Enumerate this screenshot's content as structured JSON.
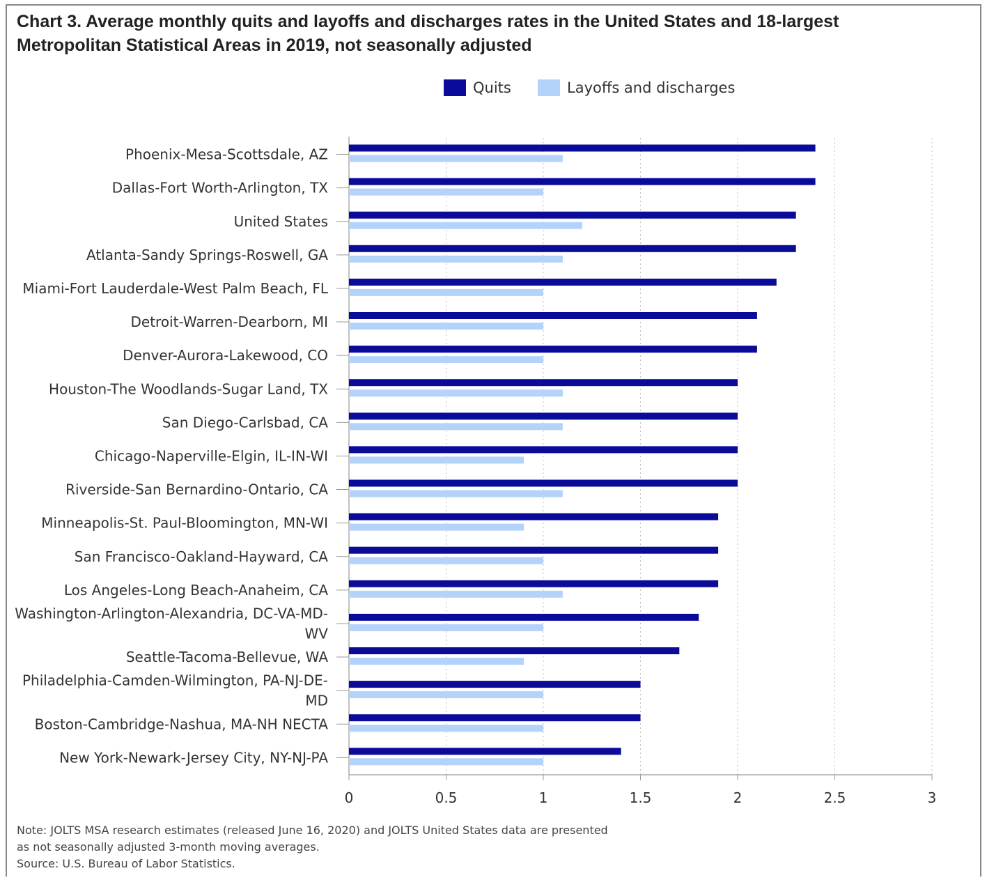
{
  "chart_data": {
    "type": "bar",
    "orientation": "horizontal",
    "title": "Chart 3. Average monthly quits and layoffs and discharges rates in the United States and 18-largest Metropolitan Statistical Areas in 2019, not seasonally adjusted",
    "categories": [
      "Phoenix-Mesa-Scottsdale, AZ",
      "Dallas-Fort Worth-Arlington, TX",
      "United States",
      "Atlanta-Sandy Springs-Roswell, GA",
      "Miami-Fort Lauderdale-West Palm Beach, FL",
      "Detroit-Warren-Dearborn, MI",
      "Denver-Aurora-Lakewood, CO",
      "Houston-The Woodlands-Sugar Land, TX",
      "San Diego-Carlsbad, CA",
      "Chicago-Naperville-Elgin, IL-IN-WI",
      "Riverside-San Bernardino-Ontario, CA",
      "Minneapolis-St. Paul-Bloomington, MN-WI",
      "San Francisco-Oakland-Hayward, CA",
      "Los Angeles-Long Beach-Anaheim, CA",
      "Washington-Arlington-Alexandria, DC-VA-MD-WV",
      "Seattle-Tacoma-Bellevue, WA",
      "Philadelphia-Camden-Wilmington, PA-NJ-DE-MD",
      "Boston-Cambridge-Nashua, MA-NH NECTA",
      "New York-Newark-Jersey City, NY-NJ-PA"
    ],
    "category_label_lines": [
      [
        "Phoenix-Mesa-Scottsdale, AZ"
      ],
      [
        "Dallas-Fort Worth-Arlington, TX"
      ],
      [
        "United States"
      ],
      [
        "Atlanta-Sandy Springs-Roswell, GA"
      ],
      [
        "Miami-Fort Lauderdale-West Palm Beach, FL"
      ],
      [
        "Detroit-Warren-Dearborn, MI"
      ],
      [
        "Denver-Aurora-Lakewood, CO"
      ],
      [
        "Houston-The Woodlands-Sugar Land, TX"
      ],
      [
        "San Diego-Carlsbad, CA"
      ],
      [
        "Chicago-Naperville-Elgin, IL-IN-WI"
      ],
      [
        "Riverside-San Bernardino-Ontario, CA"
      ],
      [
        "Minneapolis-St. Paul-Bloomington, MN-WI"
      ],
      [
        "San Francisco-Oakland-Hayward, CA"
      ],
      [
        "Los Angeles-Long Beach-Anaheim, CA"
      ],
      [
        "Washington-Arlington-Alexandria, DC-VA-MD-",
        "WV"
      ],
      [
        "Seattle-Tacoma-Bellevue, WA"
      ],
      [
        "Philadelphia-Camden-Wilmington, PA-NJ-DE-",
        "MD"
      ],
      [
        "Boston-Cambridge-Nashua, MA-NH NECTA"
      ],
      [
        "New York-Newark-Jersey City, NY-NJ-PA"
      ]
    ],
    "series": [
      {
        "name": "Quits",
        "color": "#0b0b99",
        "values": [
          2.4,
          2.4,
          2.3,
          2.3,
          2.2,
          2.1,
          2.1,
          2.0,
          2.0,
          2.0,
          2.0,
          1.9,
          1.9,
          1.9,
          1.8,
          1.7,
          1.5,
          1.5,
          1.4
        ]
      },
      {
        "name": "Layoffs and discharges",
        "color": "#b4d3fb",
        "values": [
          1.1,
          1.0,
          1.2,
          1.1,
          1.0,
          1.0,
          1.0,
          1.1,
          1.1,
          0.9,
          1.1,
          0.9,
          1.0,
          1.1,
          1.0,
          0.9,
          1.0,
          1.0,
          1.0
        ]
      }
    ],
    "xlim": [
      0,
      3
    ],
    "xticks": [
      0,
      0.5,
      1,
      1.5,
      2,
      2.5,
      3
    ],
    "xtick_labels": [
      "0",
      "0.5",
      "1",
      "1.5",
      "2",
      "2.5",
      "3"
    ],
    "xlabel": "",
    "ylabel": "",
    "grid": "vertical dotted",
    "legend_position": "top-center",
    "note_lines": [
      "Note: JOLTS MSA research estimates (released June 16, 2020) and JOLTS United States data are presented",
      "as not seasonally adjusted 3-month moving averages.",
      "Source: U.S. Bureau of Labor Statistics."
    ]
  }
}
